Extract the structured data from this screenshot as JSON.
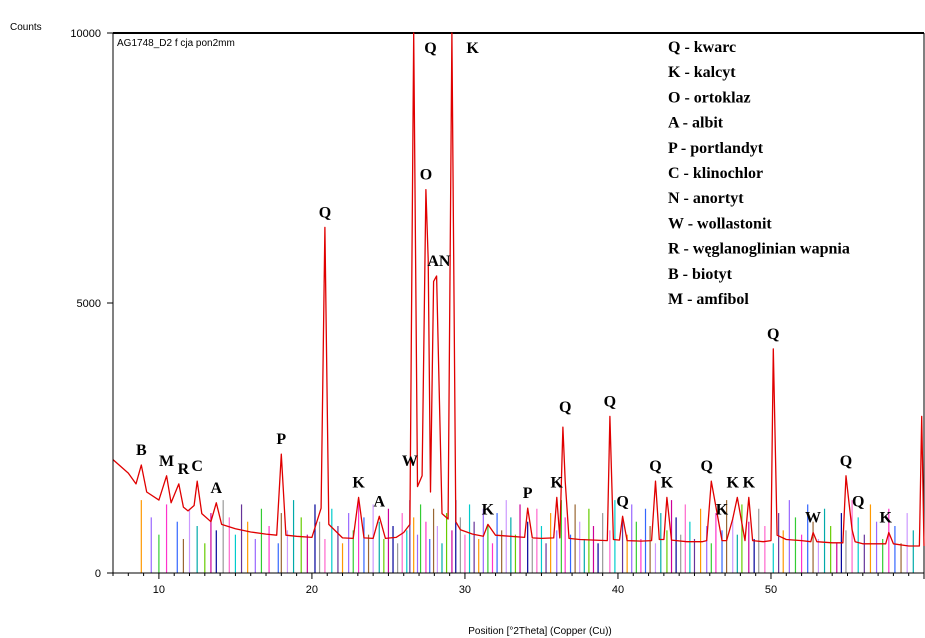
{
  "chart_data": {
    "type": "line",
    "title": "",
    "sample_label": "AG1748_D2 f cja pon2mm",
    "xlabel": "Position [°2Theta] (Copper (Cu))",
    "ylabel": "Counts",
    "xlim": [
      7,
      60
    ],
    "ylim": [
      0,
      10000
    ],
    "x_ticks": [
      10,
      20,
      30,
      40,
      50
    ],
    "y_ticks": [
      0,
      5000,
      10000
    ],
    "grid": false,
    "line_color": "#e00000",
    "series": [
      {
        "name": "",
        "x": [
          7.0,
          8.0,
          8.5,
          8.85,
          9.2,
          10.0,
          10.5,
          10.8,
          11.3,
          11.6,
          11.9,
          12.3,
          12.5,
          12.8,
          13.4,
          13.75,
          14.1,
          15.0,
          16.0,
          17.0,
          17.7,
          18.0,
          18.3,
          19.0,
          20.0,
          20.6,
          20.85,
          21.1,
          22.0,
          22.7,
          23.05,
          23.4,
          24.0,
          24.4,
          24.8,
          25.5,
          26.0,
          26.4,
          26.65,
          26.9,
          27.2,
          27.45,
          27.6,
          27.75,
          27.95,
          28.15,
          28.5,
          28.9,
          29.15,
          29.4,
          29.7,
          30.5,
          31.2,
          31.5,
          32.0,
          33.0,
          33.9,
          34.1,
          34.4,
          35.0,
          35.8,
          36.0,
          36.2,
          36.4,
          36.55,
          36.8,
          37.5,
          38.5,
          39.3,
          39.47,
          39.7,
          40.1,
          40.3,
          40.6,
          41.5,
          42.2,
          42.45,
          42.7,
          43.0,
          43.2,
          43.5,
          44.5,
          45.5,
          45.8,
          46.1,
          46.8,
          47.1,
          47.5,
          47.8,
          48.3,
          48.55,
          48.8,
          49.5,
          50.0,
          50.15,
          50.4,
          51.0,
          52.0,
          52.6,
          52.75,
          53.0,
          54.0,
          54.7,
          54.9,
          55.1,
          55.3,
          55.5,
          56.0,
          57.0,
          57.5,
          57.7,
          58.0,
          59.0,
          59.7,
          59.85,
          60.0
        ],
        "y": [
          2100,
          1850,
          1650,
          2000,
          1500,
          1350,
          1800,
          1300,
          1650,
          1220,
          1150,
          1250,
          1700,
          1100,
          950,
          1300,
          900,
          820,
          760,
          720,
          700,
          2200,
          700,
          680,
          660,
          1200,
          6400,
          900,
          650,
          640,
          1400,
          650,
          640,
          1050,
          640,
          660,
          750,
          900,
          10000,
          1600,
          1800,
          7100,
          5800,
          1500,
          5400,
          5500,
          1100,
          1000,
          10000,
          950,
          800,
          720,
          680,
          900,
          700,
          680,
          660,
          1200,
          650,
          640,
          650,
          1400,
          650,
          2700,
          1700,
          640,
          620,
          610,
          600,
          2900,
          620,
          610,
          1050,
          600,
          590,
          600,
          1700,
          620,
          620,
          1400,
          610,
          580,
          580,
          600,
          1700,
          600,
          600,
          1000,
          1400,
          600,
          1400,
          600,
          580,
          600,
          4150,
          700,
          620,
          600,
          580,
          750,
          580,
          560,
          560,
          1800,
          1300,
          800,
          580,
          540,
          540,
          540,
          750,
          540,
          500,
          500,
          2900,
          500
        ]
      }
    ],
    "peak_labels": [
      {
        "text": "B",
        "x": 8.85,
        "y": 2000
      },
      {
        "text": "M",
        "x": 10.5,
        "y": 1800
      },
      {
        "text": "R",
        "x": 11.6,
        "y": 1650
      },
      {
        "text": "C",
        "x": 12.5,
        "y": 1700
      },
      {
        "text": "A",
        "x": 13.75,
        "y": 1300
      },
      {
        "text": "P",
        "x": 18.0,
        "y": 2200
      },
      {
        "text": "Q",
        "x": 20.85,
        "y": 6400
      },
      {
        "text": "K",
        "x": 23.05,
        "y": 1400
      },
      {
        "text": "A",
        "x": 24.4,
        "y": 1050
      },
      {
        "text": "W",
        "x": 26.4,
        "y": 1800
      },
      {
        "text": "Q",
        "x": 27.75,
        "y": 10000
      },
      {
        "text": "O",
        "x": 27.45,
        "y": 7100
      },
      {
        "text": "AN",
        "x": 28.3,
        "y": 5500
      },
      {
        "text": "K",
        "x": 30.5,
        "y": 10000
      },
      {
        "text": "K",
        "x": 31.5,
        "y": 900
      },
      {
        "text": "P",
        "x": 34.1,
        "y": 1200
      },
      {
        "text": "K",
        "x": 36.0,
        "y": 1400
      },
      {
        "text": "Q",
        "x": 36.55,
        "y": 2800
      },
      {
        "text": "Q",
        "x": 39.47,
        "y": 2900
      },
      {
        "text": "Q",
        "x": 40.3,
        "y": 1050
      },
      {
        "text": "Q",
        "x": 42.45,
        "y": 1700
      },
      {
        "text": "K",
        "x": 43.2,
        "y": 1400
      },
      {
        "text": "Q",
        "x": 45.8,
        "y": 1700
      },
      {
        "text": "K",
        "x": 46.8,
        "y": 900
      },
      {
        "text": "K",
        "x": 47.5,
        "y": 1400
      },
      {
        "text": "K",
        "x": 48.55,
        "y": 1400
      },
      {
        "text": "W",
        "x": 52.75,
        "y": 750
      },
      {
        "text": "Q",
        "x": 50.15,
        "y": 4150
      },
      {
        "text": "Q",
        "x": 54.9,
        "y": 1800
      },
      {
        "text": "Q",
        "x": 55.7,
        "y": 1050
      },
      {
        "text": "K",
        "x": 57.5,
        "y": 750
      }
    ],
    "legend": [
      "Q - kwarc",
      "K - kalcyt",
      "O - ortoklaz",
      "A - albit",
      "P - portlandyt",
      "C - klinochlor",
      "N - anortyt",
      "W - wollastonit",
      "R - węglanoglinian wapnia",
      "B - biotyt",
      "M - amfibol"
    ],
    "legend_placement": "top-right",
    "reference_sticks": {
      "colors": [
        "#ff9900",
        "#9966ff",
        "#33cc33",
        "#ff33cc",
        "#3366ff",
        "#996633",
        "#cc99ff",
        "#00aaaa",
        "#66cc00",
        "#cc0099",
        "#000099",
        "#999999",
        "#ff66cc",
        "#00cccc",
        "#663399"
      ],
      "positions": [
        8.85,
        9.5,
        10.0,
        10.5,
        11.2,
        11.6,
        12.0,
        12.5,
        13.0,
        13.4,
        13.75,
        14.2,
        14.6,
        15.0,
        15.4,
        15.8,
        16.3,
        16.7,
        17.2,
        17.8,
        18.0,
        18.4,
        18.8,
        19.3,
        19.7,
        20.2,
        20.5,
        20.85,
        21.3,
        21.7,
        22.0,
        22.4,
        22.7,
        23.05,
        23.4,
        23.7,
        24.0,
        24.4,
        24.7,
        25.0,
        25.3,
        25.6,
        25.9,
        26.2,
        26.4,
        26.65,
        26.9,
        27.1,
        27.45,
        27.7,
        27.95,
        28.2,
        28.5,
        28.8,
        29.15,
        29.4,
        29.7,
        30.0,
        30.3,
        30.6,
        30.9,
        31.2,
        31.5,
        31.8,
        32.1,
        32.4,
        32.7,
        33.0,
        33.3,
        33.6,
        34.1,
        34.4,
        34.7,
        35.0,
        35.3,
        35.6,
        36.0,
        36.3,
        36.55,
        36.9,
        37.2,
        37.5,
        37.8,
        38.1,
        38.4,
        38.7,
        39.0,
        39.47,
        39.8,
        40.3,
        40.6,
        40.9,
        41.2,
        41.5,
        41.8,
        42.1,
        42.45,
        42.8,
        43.2,
        43.5,
        43.8,
        44.1,
        44.4,
        44.7,
        45.0,
        45.4,
        45.8,
        46.1,
        46.4,
        46.8,
        47.1,
        47.5,
        47.8,
        48.1,
        48.55,
        48.9,
        49.2,
        49.6,
        50.15,
        50.5,
        50.8,
        51.2,
        51.6,
        52.0,
        52.4,
        52.75,
        53.1,
        53.5,
        53.9,
        54.3,
        54.6,
        54.9,
        55.3,
        55.7,
        56.1,
        56.5,
        56.9,
        57.3,
        57.7,
        58.1,
        58.5,
        58.9,
        59.3
      ]
    }
  }
}
